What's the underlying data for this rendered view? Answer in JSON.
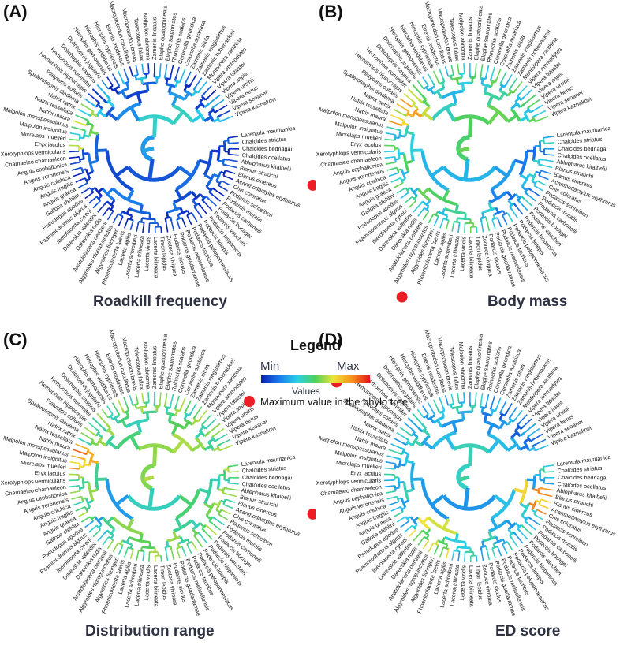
{
  "panels": [
    {
      "letter": "(A)",
      "title": "Roadkill frequency",
      "scheme": "roadkill",
      "max_index": 5
    },
    {
      "letter": "(B)",
      "title": "Body mass",
      "scheme": "body",
      "max_index": 29
    },
    {
      "letter": "(C)",
      "title": "Distribution range",
      "scheme": "range",
      "max_index": 5
    },
    {
      "letter": "(D)",
      "title": "ED score",
      "scheme": "ed",
      "max_index": 53
    }
  ],
  "species": [
    "Larentola mauritanica",
    "Chalcides striatus",
    "Chalcides bedriagai",
    "Chalcides ocellatus",
    "Ablepharus kitaibelii",
    "Blanus strauchi",
    "Blanus cinereus",
    "Acanthodactylus erythrurus",
    "Chis coloratus",
    "Podarcis schreiberi",
    "Podarcis muralis",
    "Podarcis carbonelli",
    "Podarcis bocagei",
    "Podarcis vaucheri",
    "Podarcis hispanicus",
    "Podarcis liolepis",
    "Podarcis peloponnesiacus",
    "Podarcis tauricus",
    "Podarcis melisellensis",
    "Podarcis guadarramae",
    "Podarcis siculus",
    "Zootoca vivipara",
    "Timon lepidus",
    "Lacerta bilineata",
    "Lacerta viridis",
    "Lacerta trilineata",
    "Lacerta schreiberi",
    "Lacerta agilis",
    "Phoenicolacerta laevis",
    "Algyroides fitzingeri",
    "Algyroides nigropunctatus",
    "Anatololacerta oertzeni",
    "Darevskia rudis",
    "Darevskia valentini",
    "Iberolacerta cyreni",
    "Psammodromus algirus",
    "Pseudopus apodus",
    "Gallotia stehlini",
    "Anguis graeca",
    "Anguis fragilis",
    "Anguis colchica",
    "Anguis veronensis",
    "Anguis cephallonica",
    "Chamaeleo chamaeleon",
    "Xerotyphlops vermicularis",
    "Eryx jaculus",
    "Micrelaps muelleri",
    "Malpolon insignitus",
    "Malpolon monspessulanus",
    "Natrix maura",
    "Natrix tessellata",
    "Natrix natrix",
    "Spalerosophis diadema",
    "Platyceps collaris",
    "Hemorrhois hippocrepis",
    "Hemorrhois nummifer",
    "Dolichophis caspius",
    "Dolichophis jugularis",
    "Hierophis gemonensis",
    "Hierophis viridiflavus",
    "Hierophis cypriensis",
    "Eirenis modestus",
    "Macroprotodon cucullatus",
    "Macroprotodon brevis",
    "Telescopus fallax",
    "Malpolon abnorma",
    "Zamenis lineatus",
    "Elaphe quatuorlineata",
    "Elaphe sauromates",
    "Rhinechis scalaris",
    "Coronella girondica",
    "Coronella austriaca",
    "Zamenis situla",
    "Zamenis longissimus",
    "Zamenis hohenackeri",
    "Montivipera xanthina",
    "Vipera ammodytes",
    "Vipera latastei",
    "Vipera aspis",
    "Vipera ursinii",
    "Vipera berus",
    "Vipera seoanei",
    "Vipera kaznakovi"
  ],
  "legend": {
    "title": "Legend",
    "min": "Min",
    "max": "Max",
    "values": "Values",
    "dot_label": "Maximum value in the phylo tree",
    "gradient": [
      "#0a1fb8",
      "#1a7bea",
      "#2ccfe6",
      "#4fd05a",
      "#f0e33a",
      "#f7931e",
      "#e3141b"
    ],
    "dot_color": "#ee1c25"
  }
}
